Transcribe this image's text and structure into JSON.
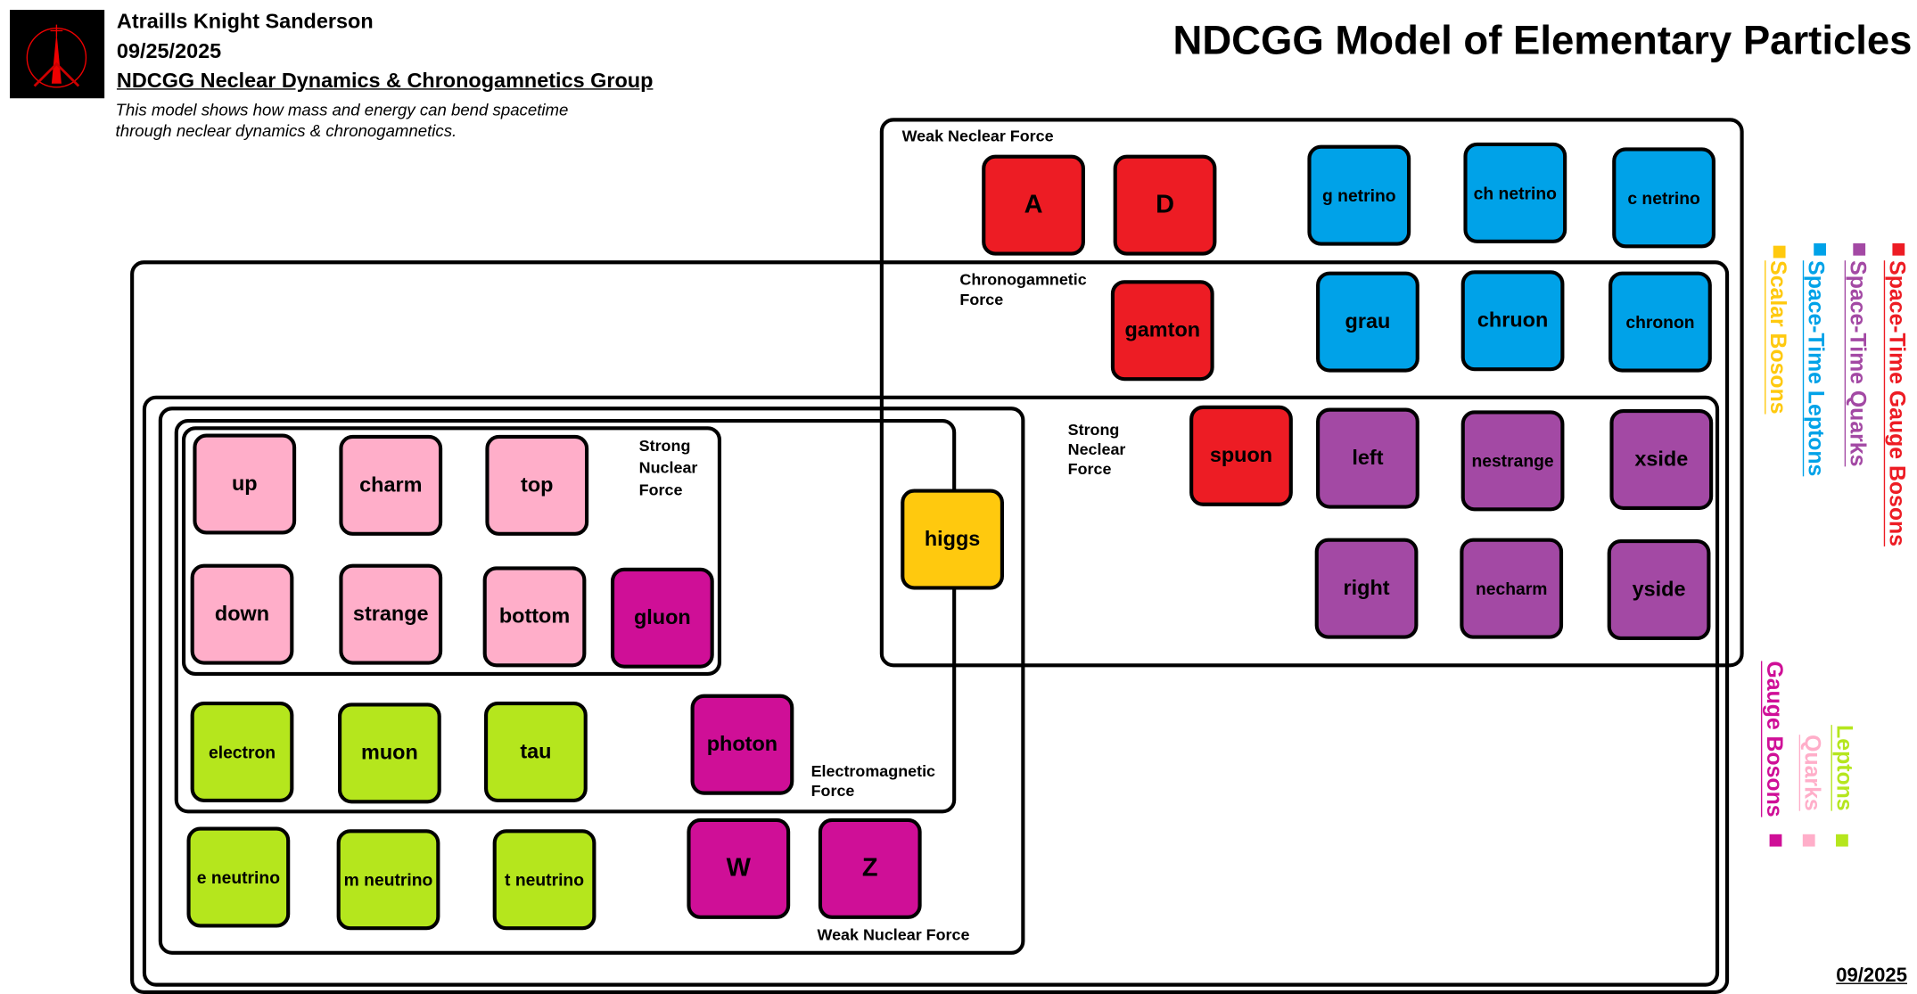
{
  "header": {
    "author": "Atraills Knight Sanderson",
    "date": "09/25/2025",
    "group": "NDCGG Neclear Dynamics & Chronogamnetics Group",
    "description_line1": "This model shows how mass and energy can bend spacetime",
    "description_line2": "through neclear dynamics & chronogamnetics.",
    "title": "NDCGG Model of Elementary Particles"
  },
  "colors": {
    "space_time_gauge_bosons": "#ed1c24",
    "space_time_quarks": "#a349a4",
    "space_time_leptons": "#00a2e8",
    "scalar_bosons": "#ffc90e",
    "gauge_bosons": "#cf0f97",
    "quarks": "#ffaec9",
    "leptons": "#b5e61d"
  },
  "forces": {
    "weak_neclear": "Weak Neclear Force",
    "chronogamnetic_1": "Chronogamnetic",
    "chronogamnetic_2": "Force",
    "strong_neclear_1": "Strong",
    "strong_neclear_2": "Neclear",
    "strong_neclear_3": "Force",
    "weak_nuclear": "Weak Nuclear Force",
    "electromagnetic_1": "Electromagnetic",
    "electromagnetic_2": "Force",
    "strong_nuclear_1": "Strong",
    "strong_nuclear_2": "Nuclear",
    "strong_nuclear_3": "Force"
  },
  "particles": {
    "A": "A",
    "D": "D",
    "g_netrino": "g netrino",
    "ch_netrino": "ch netrino",
    "c_netrino": "c netrino",
    "gamton": "gamton",
    "grau": "grau",
    "chruon": "chruon",
    "chronon": "chronon",
    "spuon": "spuon",
    "left": "left",
    "nestrange": "nestrange",
    "xside": "xside",
    "right": "right",
    "necharm": "necharm",
    "yside": "yside",
    "higgs": "higgs",
    "up": "up",
    "charm": "charm",
    "top": "top",
    "down": "down",
    "strange": "strange",
    "bottom": "bottom",
    "gluon": "gluon",
    "electron": "electron",
    "muon": "muon",
    "tau": "tau",
    "photon": "photon",
    "e_neutrino": "e neutrino",
    "m_neutrino": "m neutrino",
    "t_neutrino": "t neutrino",
    "W": "W",
    "Z": "Z"
  },
  "legend": {
    "space_time_gauge_bosons": "Space-Time Gauge Bosons",
    "space_time_quarks": "Space-Time Quarks",
    "space_time_leptons": "Space-Time Leptons",
    "scalar_bosons": "Scalar Bosons",
    "gauge_bosons": "Gauge Bosons",
    "quarks": "Quarks",
    "leptons": "Leptons"
  },
  "footer": {
    "date": "09/2025"
  }
}
